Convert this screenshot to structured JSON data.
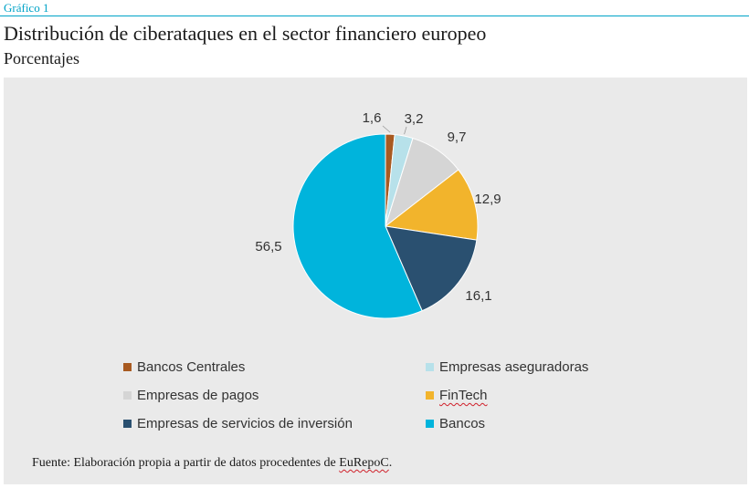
{
  "header": {
    "kicker": "Gráfico 1",
    "title": "Distribución de ciberataques en el sector financiero europeo",
    "subtitle": "Porcentajes"
  },
  "chart_data": {
    "type": "pie",
    "unit": "%",
    "start_angle_deg": 0,
    "direction": "clockwise",
    "slices": [
      {
        "label": "Bancos Centrales",
        "value": 1.6,
        "value_label": "1,6",
        "color": "#a85a21"
      },
      {
        "label": "Empresas aseguradoras",
        "value": 3.2,
        "value_label": "3,2",
        "color": "#b7e1ea"
      },
      {
        "label": "Empresas de pagos",
        "value": 9.7,
        "value_label": "9,7",
        "color": "#d5d5d5"
      },
      {
        "label": "FinTech",
        "value": 12.9,
        "value_label": "12,9",
        "color": "#f2b42c"
      },
      {
        "label": "Empresas de servicios de inversión",
        "value": 16.1,
        "value_label": "16,1",
        "color": "#2a5070"
      },
      {
        "label": "Bancos",
        "value": 56.5,
        "value_label": "56,5",
        "color": "#00b4dc"
      }
    ]
  },
  "legend": {
    "items": [
      {
        "label": "Bancos Centrales",
        "color": "#a85a21"
      },
      {
        "label": "Empresas aseguradoras",
        "color": "#b7e1ea"
      },
      {
        "label": "Empresas de pagos",
        "color": "#d5d5d5"
      },
      {
        "label": "FinTech",
        "color": "#f2b42c"
      },
      {
        "label": "Empresas de servicios de inversión",
        "color": "#2a5070"
      },
      {
        "label": "Bancos",
        "color": "#00b4dc"
      }
    ]
  },
  "source": {
    "prefix": "Fuente: Elaboración propia a partir de datos procedentes de ",
    "org": "EuRepoC",
    "suffix": "."
  }
}
